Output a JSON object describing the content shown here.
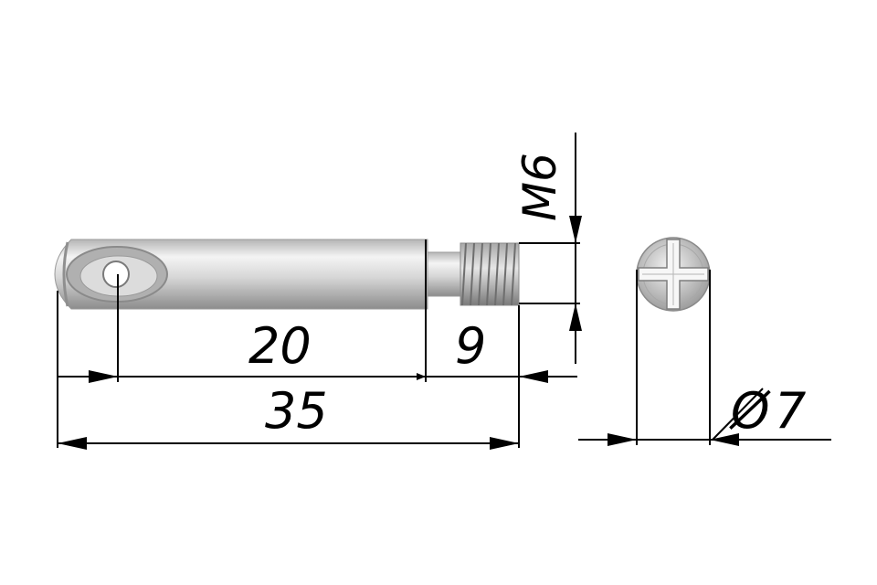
{
  "dimensions": {
    "thread_length": "9",
    "shank_length": "20",
    "total_length": "35",
    "thread_size": "M6",
    "diameter_symbol": "Ø",
    "diameter_value": "7"
  },
  "colors": {
    "line": "#000000",
    "metal_light": "#f2f2f2",
    "metal_mid": "#c8c8c8",
    "metal_dark": "#8a8a8a"
  }
}
